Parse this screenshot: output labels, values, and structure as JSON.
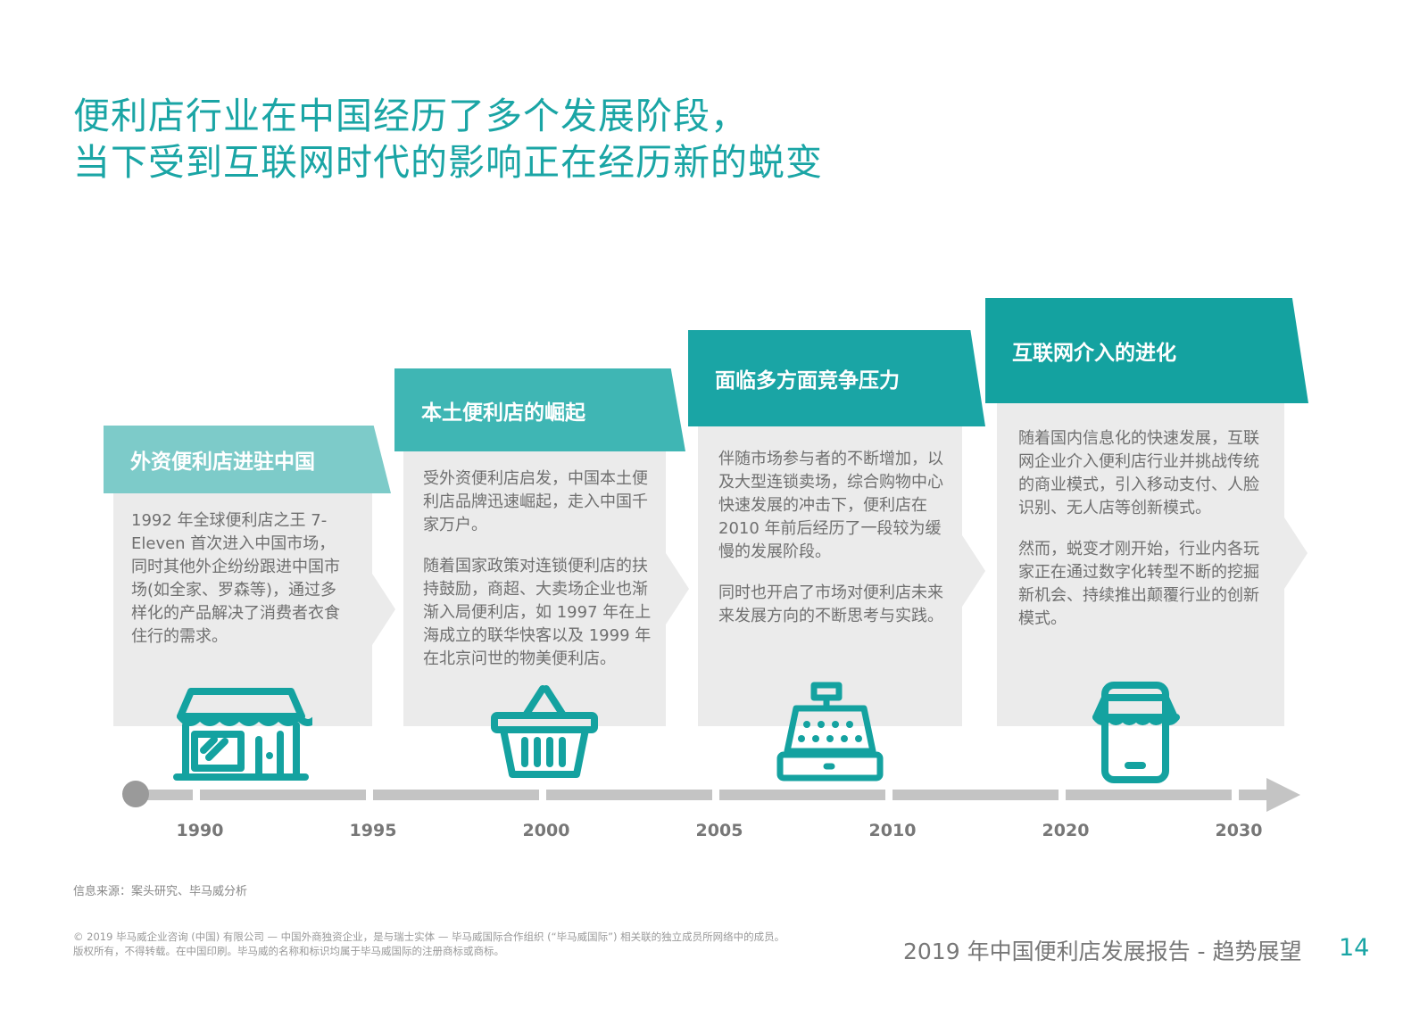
{
  "title": {
    "line1": "便利店行业在中国经历了多个发展阶段，",
    "line2": "当下受到互联网时代的影响正在经历新的蜕变"
  },
  "stages": [
    {
      "heading": "外资便利店进驻中国",
      "paragraphs": [
        "1992 年全球便利店之王 7-Eleven 首次进入中国市场，同时其他外企纷纷跟进中国市场(如全家、罗森等)，通过多样化的产品解决了消费者衣食住行的需求。"
      ],
      "icon": "storefront-icon",
      "banner_color": "#7dcbc9"
    },
    {
      "heading": "本土便利店的崛起",
      "paragraphs": [
        "受外资便利店启发，中国本土便利店品牌迅速崛起，走入中国千家万户。",
        "随着国家政策对连锁便利店的扶持鼓励，商超、大卖场企业也渐渐入局便利店，如 1997 年在上海成立的联华快客以及 1999 年在北京问世的物美便利店。"
      ],
      "icon": "shopping-basket-icon",
      "banner_color": "#3fb6b4"
    },
    {
      "heading": "面临多方面竞争压力",
      "paragraphs": [
        "伴随市场参与者的不断增加，以及大型连锁卖场，综合购物中心快速发展的冲击下，便利店在 2010 年前后经历了一段较为缓慢的发展阶段。",
        "同时也开启了市场对便利店未来来发展方向的不断思考与实践。"
      ],
      "icon": "cash-register-icon",
      "banner_color": "#1aa5a5"
    },
    {
      "heading": "互联网介入的进化",
      "paragraphs": [
        "随着国内信息化的快速发展，互联网企业介入便利店行业并挑战传统的商业模式，引入移动支付、人脸识别、无人店等创新模式。",
        "然而，蜕变才刚开始，行业内各玩家正在通过数字化转型不断的挖掘新机会、持续推出颠覆行业的创新模式。"
      ],
      "icon": "mobile-store-icon",
      "banner_color": "#14a2a0"
    }
  ],
  "timeline": {
    "years": [
      "1990",
      "1995",
      "2000",
      "2005",
      "2010",
      "2020",
      "2030"
    ]
  },
  "footer": {
    "source": "信息来源：案头研究、毕马威分析",
    "copyright": "© 2019 毕马威企业咨询 (中国) 有限公司 — 中国外商独资企业，是与瑞士实体 — 毕马威国际合作组织 (“毕马威国际”) 相关联的独立成员所网络中的成员。版权所有，不得转载。在中国印刷。毕马威的名称和标识均属于毕马威国际的注册商标或商标。",
    "report_title": "2019 年中国便利店发展报告 - 趋势展望",
    "page_number": "14"
  },
  "colors": {
    "accent": "#1aa5a5",
    "card_bg": "#ebebeb",
    "timeline": "#c4c4c4"
  }
}
